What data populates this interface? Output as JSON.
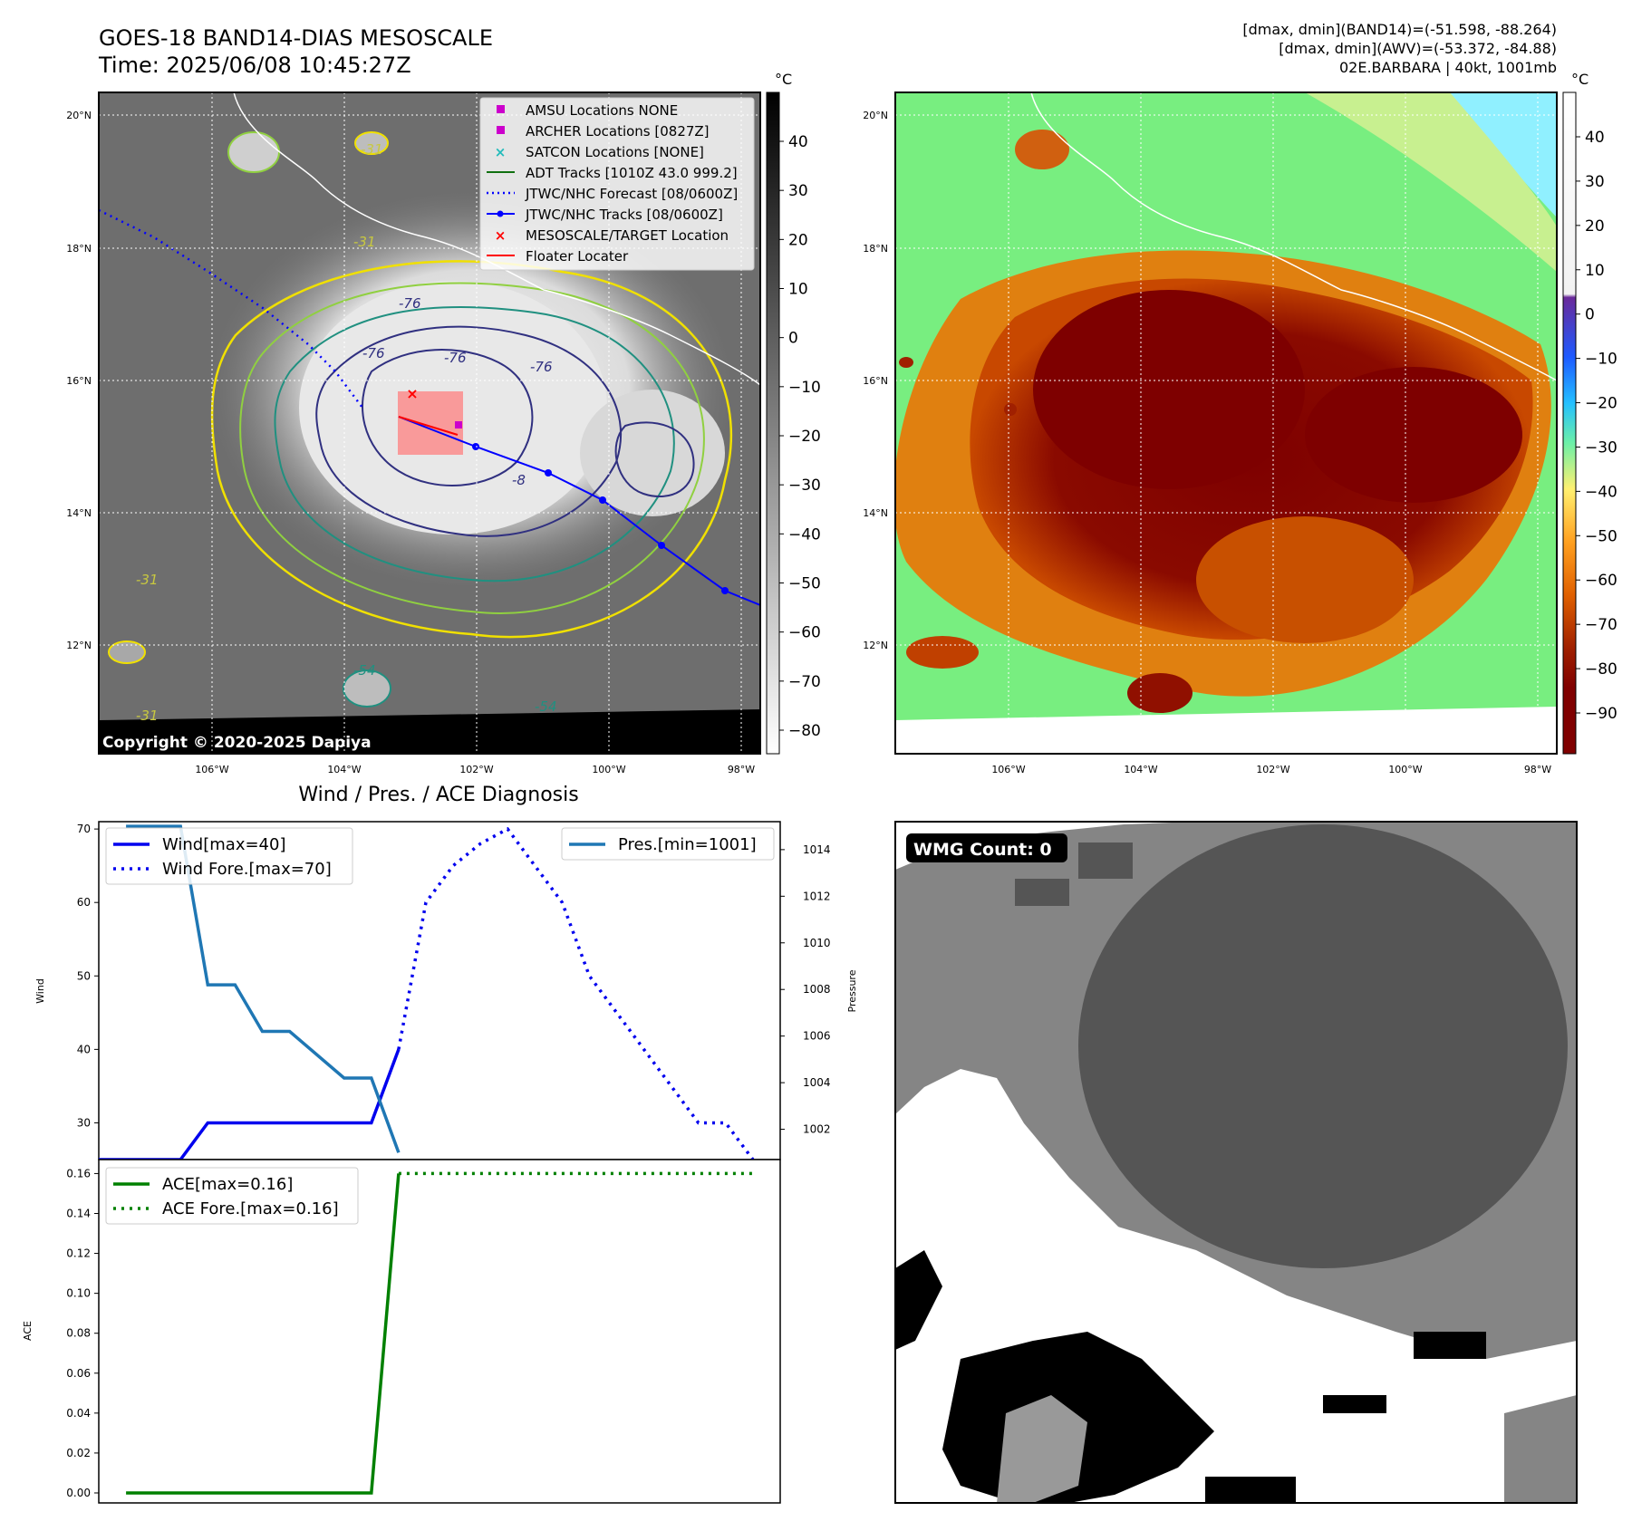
{
  "header": {
    "title_line1": "GOES-18 BAND14-DIAS MESOSCALE",
    "title_line2": "Time: 2025/06/08 10:45:27Z",
    "info_line1": "[dmax, dmin](BAND14)=(-51.598, -88.264)",
    "info_line2": "[dmax, dmin](AWV)=(-53.372, -84.88)",
    "info_line3": "02E.BARBARA | 40kt, 1001mb"
  },
  "maps": {
    "lat_ticks": [
      "20°N",
      "18°N",
      "16°N",
      "14°N",
      "12°N"
    ],
    "lon_ticks": [
      "106°W",
      "104°W",
      "102°W",
      "100°W",
      "98°W"
    ],
    "copyright": "Copyright © 2020-2025 Dapiya",
    "contour_labels": [
      "-31",
      "-31",
      "-31",
      "-31",
      "-54",
      "-54",
      "-76",
      "-76",
      "-76",
      "-76",
      "-8"
    ]
  },
  "left_colorbar": {
    "unit": "°C",
    "ticks": [
      "40",
      "30",
      "20",
      "10",
      "0",
      "−10",
      "−20",
      "−30",
      "−40",
      "−50",
      "−60",
      "−70",
      "−80"
    ]
  },
  "right_colorbar": {
    "unit": "°C",
    "ticks": [
      "40",
      "30",
      "20",
      "10",
      "0",
      "−10",
      "−20",
      "−30",
      "−40",
      "−50",
      "−60",
      "−70",
      "−80",
      "−90"
    ]
  },
  "map_legend": [
    {
      "label": "AMSU Locations NONE",
      "marker": "square",
      "color": "#cc00cc"
    },
    {
      "label": "ARCHER Locations [0827Z]",
      "marker": "square",
      "color": "#cc00cc"
    },
    {
      "label": "SATCON Locations [NONE]",
      "marker": "x",
      "color": "#22bbbb"
    },
    {
      "label": "ADT Tracks [1010Z 43.0 999.2]",
      "marker": "line",
      "color": "#107010"
    },
    {
      "label": "JTWC/NHC Forecast [08/0600Z]",
      "marker": "dotted",
      "color": "#0000ff"
    },
    {
      "label": "JTWC/NHC Tracks [08/0600Z]",
      "marker": "line-dot",
      "color": "#0000ff"
    },
    {
      "label": "MESOSCALE/TARGET Location",
      "marker": "x",
      "color": "#ff0000"
    },
    {
      "label": "Floater Locater",
      "marker": "line",
      "color": "#ff0000"
    }
  ],
  "wmg": {
    "label": "WMG Count: 0"
  },
  "chart_data": [
    {
      "type": "line",
      "title": "Wind / Pres. / ACE Diagnosis",
      "ylabel": "Wind",
      "y2label": "Pressure",
      "ylim": [
        25,
        71
      ],
      "y2lim": [
        1000.7,
        1015.2
      ],
      "xlim": [
        0,
        25
      ],
      "yticks": [
        "70",
        "60",
        "50",
        "40",
        "30"
      ],
      "y2ticks": [
        "1014",
        "1012",
        "1010",
        "1008",
        "1006",
        "1004",
        "1002"
      ],
      "series": [
        {
          "name": "Wind[max=40]",
          "style": "solid",
          "color": "#0000ee",
          "x": [
            0,
            3,
            4,
            5,
            9,
            10,
            11
          ],
          "values": [
            25,
            25,
            30,
            30,
            30,
            30,
            40
          ]
        },
        {
          "name": "Wind Fore.[max=70]",
          "style": "dotted",
          "color": "#0000ee",
          "x": [
            11,
            12,
            13,
            14,
            15,
            16,
            17,
            18,
            19,
            20,
            21,
            22,
            23,
            24
          ],
          "values": [
            40,
            60,
            65,
            68,
            70,
            65,
            60,
            50,
            45,
            40,
            35,
            30,
            30,
            25
          ]
        },
        {
          "name": "Pres.[min=1001]",
          "style": "solid",
          "color": "#1f77b4",
          "axis": "right",
          "x": [
            1,
            3,
            4,
            5,
            6,
            7,
            9,
            10,
            11
          ],
          "values": [
            1015,
            1015,
            1008.2,
            1008.2,
            1006.2,
            1006.2,
            1004.2,
            1004.2,
            1001
          ]
        }
      ]
    },
    {
      "type": "line",
      "ylabel": "ACE",
      "ylim": [
        -0.005,
        0.167
      ],
      "xlim": [
        0,
        25
      ],
      "yticks": [
        "0.16",
        "0.14",
        "0.12",
        "0.10",
        "0.08",
        "0.06",
        "0.04",
        "0.02",
        "0.00"
      ],
      "series": [
        {
          "name": "ACE[max=0.16]",
          "style": "solid",
          "color": "#008000",
          "x": [
            1,
            10,
            11
          ],
          "values": [
            0,
            0,
            0.16
          ]
        },
        {
          "name": "ACE Fore.[max=0.16]",
          "style": "dotted",
          "color": "#008000",
          "x": [
            11,
            24
          ],
          "values": [
            0.16,
            0.16
          ]
        }
      ]
    }
  ]
}
